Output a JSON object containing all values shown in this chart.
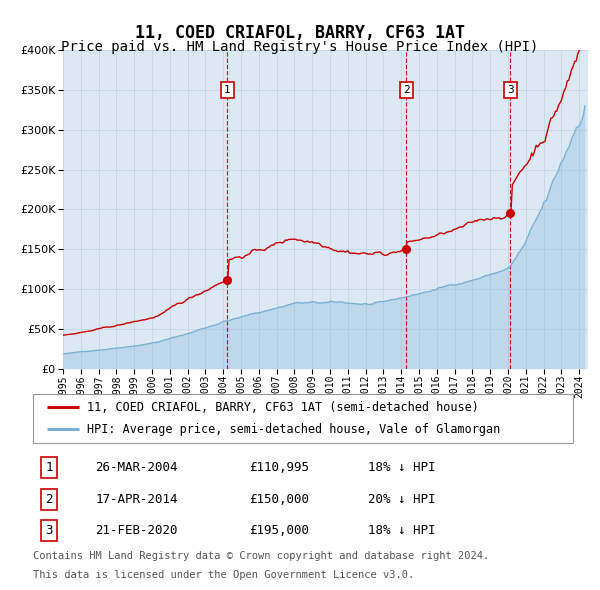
{
  "title": "11, COED CRIAFOL, BARRY, CF63 1AT",
  "subtitle": "Price paid vs. HM Land Registry's House Price Index (HPI)",
  "legend_property": "11, COED CRIAFOL, BARRY, CF63 1AT (semi-detached house)",
  "legend_hpi": "HPI: Average price, semi-detached house, Vale of Glamorgan",
  "footer": "Contains HM Land Registry data © Crown copyright and database right 2024.\nThis data is licensed under the Open Government Licence v3.0.",
  "transactions": [
    {
      "num": 1,
      "date": "26-MAR-2004",
      "price": 110995,
      "pct": "18%",
      "dir": "↓"
    },
    {
      "num": 2,
      "date": "17-APR-2014",
      "price": 150000,
      "pct": "20%",
      "dir": "↓"
    },
    {
      "num": 3,
      "date": "21-FEB-2020",
      "price": 195000,
      "pct": "18%",
      "dir": "↓"
    }
  ],
  "transaction_dates_decimal": [
    2004.23,
    2014.29,
    2020.13
  ],
  "transaction_prices": [
    110995,
    150000,
    195000
  ],
  "ylim": [
    0,
    400000
  ],
  "yticks": [
    0,
    50000,
    100000,
    150000,
    200000,
    250000,
    300000,
    350000,
    400000
  ],
  "xlim_start": 1995.0,
  "xlim_end": 2024.5,
  "plot_bg_color": "#dce9f5",
  "line_color_property": "#cc0000",
  "line_color_hpi": "#7ab0d4",
  "vline_color": "#cc0000",
  "dot_color": "#cc0000",
  "grid_color": "#c8d8e8",
  "title_fontsize": 12,
  "subtitle_fontsize": 10,
  "legend_fontsize": 8.5,
  "footer_fontsize": 7.5,
  "tick_fontsize": 8
}
